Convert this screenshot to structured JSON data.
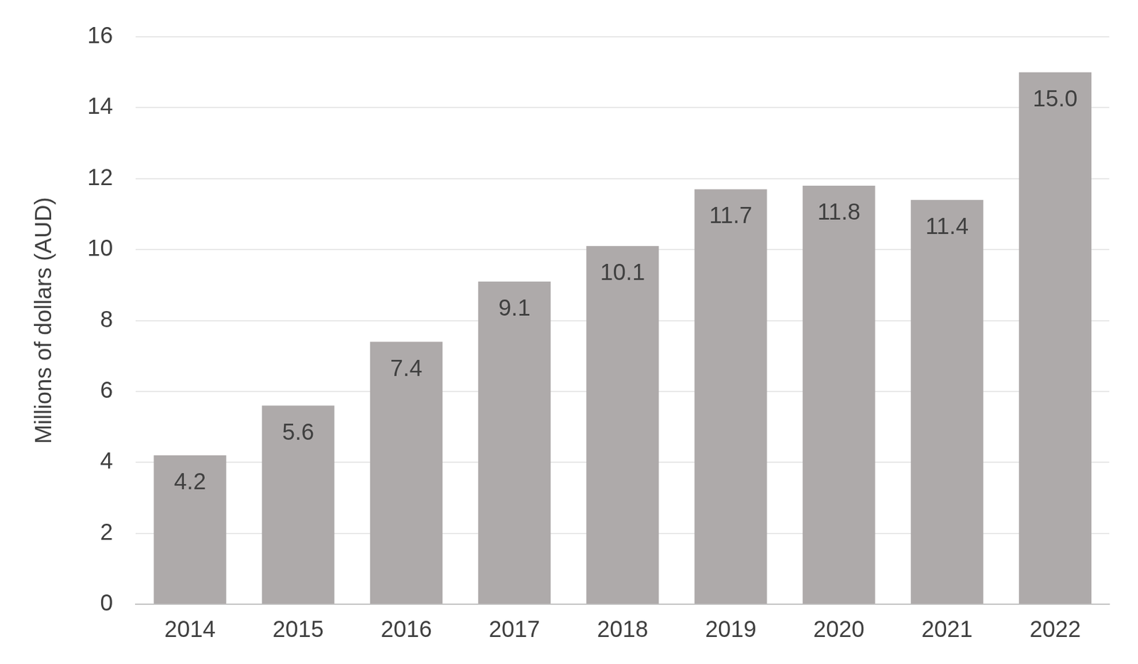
{
  "chart_data": {
    "type": "bar",
    "y_label": "Millions of dollars (AUD)",
    "categories": [
      "2014",
      "2015",
      "2016",
      "2017",
      "2018",
      "2019",
      "2020",
      "2021",
      "2022"
    ],
    "values": [
      4.2,
      5.6,
      7.4,
      9.1,
      10.1,
      11.7,
      11.8,
      11.4,
      15.0
    ],
    "value_labels": [
      "4.2",
      "5.6",
      "7.4",
      "9.1",
      "10.1",
      "11.7",
      "11.8",
      "11.4",
      "15.0"
    ],
    "color": "#aeaaaa",
    "ylim": [
      0,
      16
    ],
    "yticks": [
      0,
      2,
      4,
      6,
      8,
      10,
      12,
      14,
      16
    ],
    "grid": true,
    "data_labels": true
  }
}
